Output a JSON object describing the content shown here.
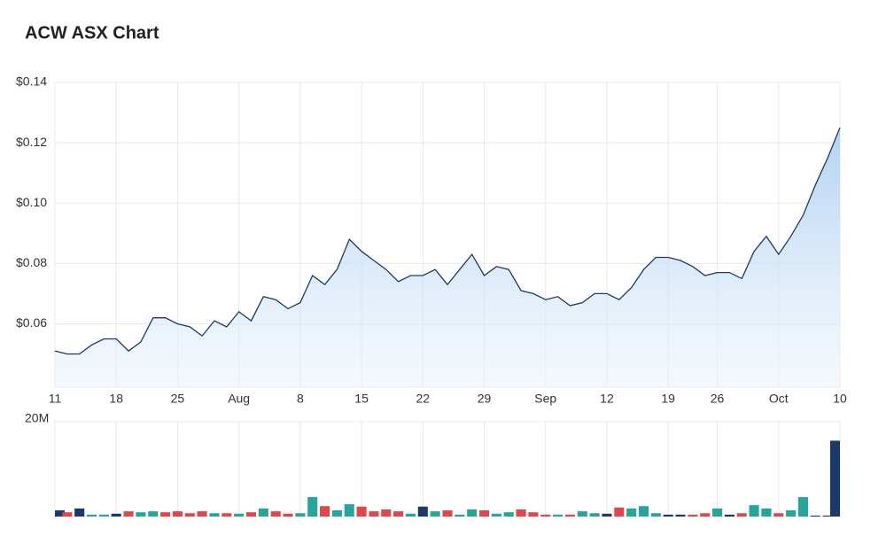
{
  "chart_data": [
    {
      "type": "area",
      "title": "ACW ASX Chart",
      "color": "#1a3a6b",
      "x": [
        "Jul 11",
        "Jul 12",
        "Jul 13",
        "Jul 14",
        "Jul 15",
        "Jul 18",
        "Jul 19",
        "Jul 20",
        "Jul 21",
        "Jul 22",
        "Jul 25",
        "Jul 26",
        "Jul 27",
        "Jul 28",
        "Jul 29",
        "Aug 1",
        "Aug 2",
        "Aug 3",
        "Aug 4",
        "Aug 5",
        "Aug 8",
        "Aug 9",
        "Aug 10",
        "Aug 11",
        "Aug 12",
        "Aug 15",
        "Aug 16",
        "Aug 17",
        "Aug 18",
        "Aug 19",
        "Aug 22",
        "Aug 23",
        "Aug 24",
        "Aug 25",
        "Aug 26",
        "Aug 29",
        "Aug 30",
        "Aug 31",
        "Sep 1",
        "Sep 2",
        "Sep 5",
        "Sep 6",
        "Sep 7",
        "Sep 8",
        "Sep 9",
        "Sep 12",
        "Sep 13",
        "Sep 14",
        "Sep 15",
        "Sep 16",
        "Sep 19",
        "Sep 20",
        "Sep 21",
        "Sep 23",
        "Sep 26",
        "Sep 27",
        "Sep 28",
        "Sep 29",
        "Sep 30",
        "Oct 3",
        "Oct 4",
        "Oct 5",
        "Oct 6",
        "Oct 7",
        "Oct 10"
      ],
      "values": [
        0.051,
        0.05,
        0.05,
        0.053,
        0.055,
        0.055,
        0.051,
        0.054,
        0.062,
        0.062,
        0.06,
        0.059,
        0.056,
        0.061,
        0.059,
        0.064,
        0.061,
        0.069,
        0.068,
        0.065,
        0.067,
        0.076,
        0.073,
        0.078,
        0.088,
        0.084,
        0.081,
        0.078,
        0.074,
        0.076,
        0.076,
        0.078,
        0.073,
        0.078,
        0.083,
        0.076,
        0.079,
        0.078,
        0.071,
        0.07,
        0.068,
        0.069,
        0.066,
        0.067,
        0.07,
        0.07,
        0.068,
        0.072,
        0.078,
        0.082,
        0.082,
        0.081,
        0.079,
        0.076,
        0.077,
        0.077,
        0.075,
        0.084,
        0.089,
        0.083,
        0.089,
        0.096,
        0.106,
        0.115,
        0.125
      ],
      "ylim": [
        0.039,
        0.14
      ],
      "yticks": [
        {
          "value": 0.06,
          "label": "$0.06"
        },
        {
          "value": 0.08,
          "label": "$0.08"
        },
        {
          "value": 0.1,
          "label": "$0.10"
        },
        {
          "value": 0.12,
          "label": "$0.12"
        },
        {
          "value": 0.14,
          "label": "$0.14"
        }
      ],
      "xticks": [
        {
          "value": "Jul 11",
          "label": "11"
        },
        {
          "value": "Jul 18",
          "label": "18"
        },
        {
          "value": "Jul 25",
          "label": "25"
        },
        {
          "value": "Aug 1",
          "label": "Aug"
        },
        {
          "value": "Aug 8",
          "label": "8"
        },
        {
          "value": "Aug 15",
          "label": "15"
        },
        {
          "value": "Aug 22",
          "label": "22"
        },
        {
          "value": "Aug 29",
          "label": "29"
        },
        {
          "value": "Sep 5",
          "label": "Sep"
        },
        {
          "value": "Sep 12",
          "label": "12"
        },
        {
          "value": "Sep 19",
          "label": "19"
        },
        {
          "value": "Sep 26",
          "label": "26"
        },
        {
          "value": "Oct 3",
          "label": "Oct"
        },
        {
          "value": "Oct 10",
          "label": "10"
        }
      ],
      "grid": true
    },
    {
      "type": "bar",
      "values": [
        1300000,
        900000,
        1700000,
        400000,
        400000,
        600000,
        1100000,
        900000,
        1100000,
        900000,
        1100000,
        700000,
        1100000,
        700000,
        700000,
        600000,
        900000,
        1700000,
        1100000,
        600000,
        700000,
        4100000,
        2200000,
        1300000,
        2600000,
        2100000,
        1100000,
        1500000,
        1100000,
        600000,
        2100000,
        1100000,
        1300000,
        400000,
        1500000,
        1300000,
        600000,
        900000,
        1500000,
        900000,
        400000,
        400000,
        400000,
        1100000,
        700000,
        600000,
        1900000,
        1700000,
        2200000,
        700000,
        400000,
        400000,
        400000,
        700000,
        1700000,
        400000,
        700000,
        2400000,
        1700000,
        700000,
        1300000,
        4100000,
        200000,
        200000,
        16000000
      ],
      "colors": [
        "#1a3a6b",
        "#e0474c",
        "#1a3a6b",
        "#26a69a",
        "#26a69a",
        "#1a3a6b",
        "#e0474c",
        "#26a69a",
        "#26a69a",
        "#e0474c",
        "#e0474c",
        "#e0474c",
        "#e0474c",
        "#26a69a",
        "#e0474c",
        "#26a69a",
        "#e0474c",
        "#26a69a",
        "#e0474c",
        "#e0474c",
        "#26a69a",
        "#26a69a",
        "#e0474c",
        "#26a69a",
        "#26a69a",
        "#e0474c",
        "#e0474c",
        "#e0474c",
        "#e0474c",
        "#26a69a",
        "#1a3a6b",
        "#26a69a",
        "#e0474c",
        "#26a69a",
        "#26a69a",
        "#e0474c",
        "#26a69a",
        "#26a69a",
        "#e0474c",
        "#e0474c",
        "#e0474c",
        "#26a69a",
        "#e0474c",
        "#26a69a",
        "#26a69a",
        "#1a3a6b",
        "#e0474c",
        "#26a69a",
        "#26a69a",
        "#26a69a",
        "#1a3a6b",
        "#1a3a6b",
        "#e0474c",
        "#e0474c",
        "#26a69a",
        "#1a3a6b",
        "#e0474c",
        "#26a69a",
        "#26a69a",
        "#e0474c",
        "#26a69a",
        "#26a69a",
        "#1a3a6b",
        "#1a3a6b",
        "#1a3a6b"
      ],
      "ylim": [
        0,
        20000000
      ],
      "yticks": [
        {
          "value": 20000000,
          "label": "20M"
        }
      ],
      "grid": true
    }
  ]
}
